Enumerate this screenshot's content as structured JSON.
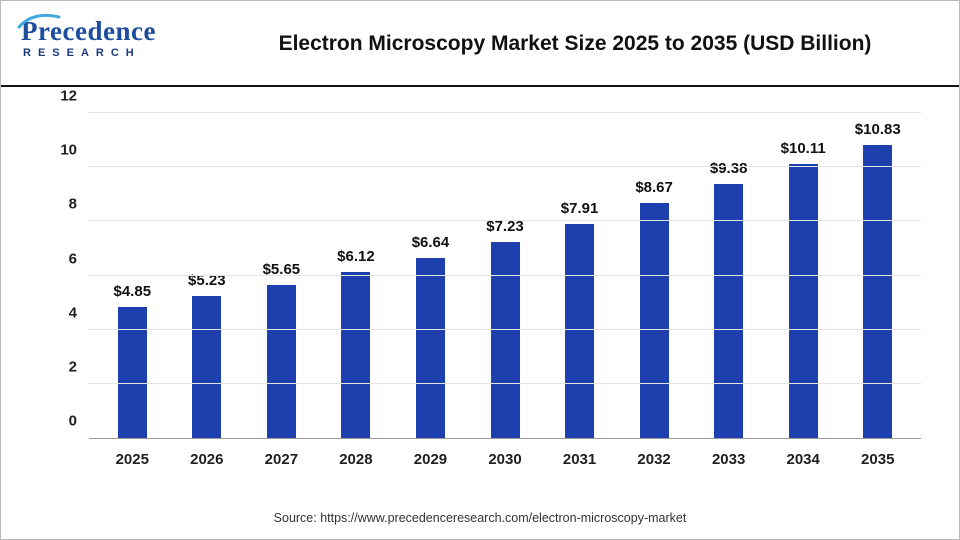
{
  "header": {
    "title": "Electron Microscopy Market Size 2025 to 2035 (USD Billion)",
    "logo": {
      "line1": "Precedence",
      "line2": "RESEARCH"
    }
  },
  "source": "Source: https://www.precedenceresearch.com/electron-microscopy-market",
  "chart_data": {
    "type": "bar",
    "title": "Electron Microscopy Market Size 2025 to 2035 (USD Billion)",
    "categories": [
      "2025",
      "2026",
      "2027",
      "2028",
      "2029",
      "2030",
      "2031",
      "2032",
      "2033",
      "2034",
      "2035"
    ],
    "values": [
      4.85,
      5.23,
      5.65,
      6.12,
      6.64,
      7.23,
      7.91,
      8.67,
      9.38,
      10.11,
      10.83
    ],
    "value_labels": [
      "$4.85",
      "$5.23",
      "$5.65",
      "$6.12",
      "$6.64",
      "$7.23",
      "$7.91",
      "$8.67",
      "$9.38",
      "$10.11",
      "$10.83"
    ],
    "xlabel": "",
    "ylabel": "",
    "ylim": [
      0,
      12
    ],
    "yticks": [
      0,
      2,
      4,
      6,
      8,
      10,
      12
    ],
    "grid": "horizontal",
    "legend": "none",
    "bar_color": "#1e3fae",
    "colors": {
      "grid": "#e4e4e4",
      "axis_text": "#1f1f1f",
      "logo_blue": "#1d4e9e",
      "swoosh_blue": "#3fa9dc"
    }
  }
}
